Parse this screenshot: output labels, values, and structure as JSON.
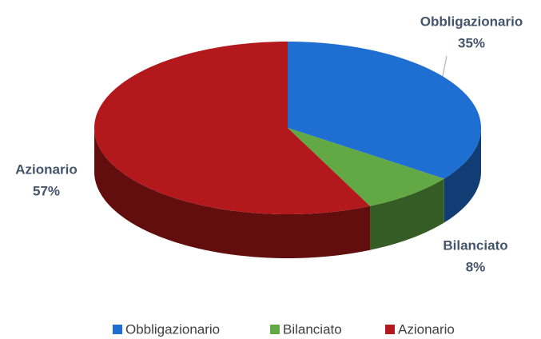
{
  "chart_data": {
    "type": "pie",
    "categories": [
      "Obbligazionario",
      "Bilanciato",
      "Azionario"
    ],
    "values": [
      35,
      8,
      57
    ],
    "value_labels": [
      "35%",
      "8%",
      "57%"
    ],
    "colors": [
      "#1f6fd2",
      "#62a844",
      "#b3191c"
    ],
    "legend": "bottom"
  }
}
